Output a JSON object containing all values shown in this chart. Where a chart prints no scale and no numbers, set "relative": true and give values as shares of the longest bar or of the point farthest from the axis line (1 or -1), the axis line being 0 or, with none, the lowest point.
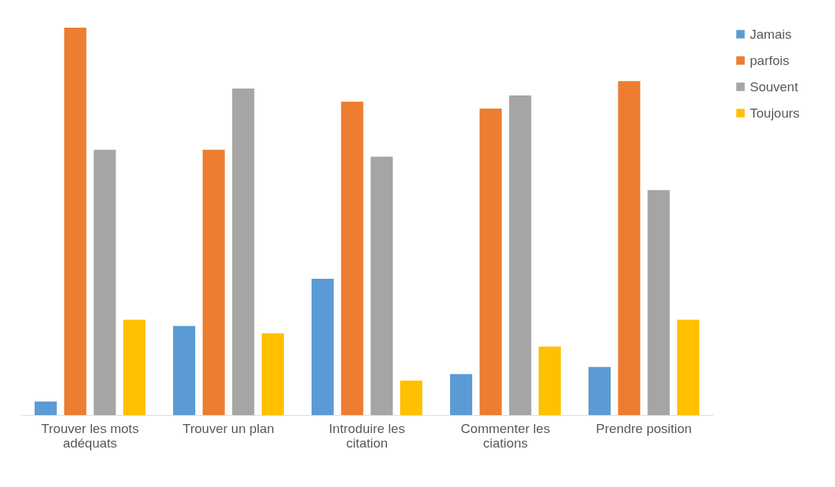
{
  "chart_data": {
    "type": "bar",
    "relative": true,
    "legend": "right",
    "grid": false,
    "categories": [
      "Trouver les mots adéquats",
      "Trouver un plan",
      "Introduire les citation",
      "Commenter les ciations",
      "Prendre position"
    ],
    "series": [
      {
        "name": "Jamais",
        "color": "#5b9bd5",
        "values": [
          0.035,
          0.23,
          0.352,
          0.106,
          0.124
        ]
      },
      {
        "name": "parfois",
        "color": "#ed7d31",
        "values": [
          1,
          0.685,
          0.809,
          0.791,
          0.862
        ]
      },
      {
        "name": "Souvent",
        "color": "#a5a5a5",
        "values": [
          0.685,
          0.843,
          0.667,
          0.825,
          0.581
        ]
      },
      {
        "name": "Toujours",
        "color": "#ffc000",
        "values": [
          0.246,
          0.211,
          0.089,
          0.177,
          0.246
        ]
      }
    ]
  }
}
